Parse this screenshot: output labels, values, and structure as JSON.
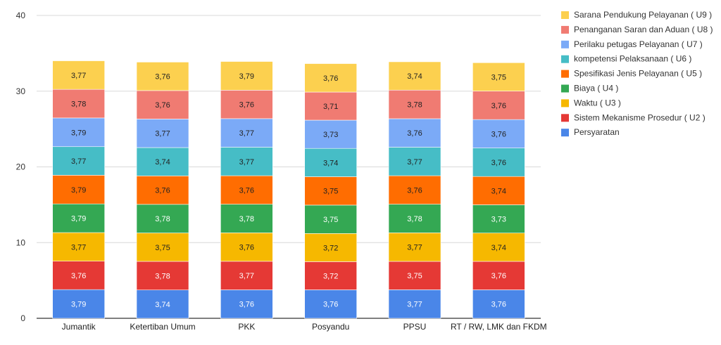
{
  "chart_data": {
    "type": "bar",
    "stacked": true,
    "categories": [
      "Jumantik",
      "Ketertiban Umum",
      "PKK",
      "Posyandu",
      "PPSU",
      "RT / RW, LMK dan FKDM"
    ],
    "ylim": [
      0,
      40
    ],
    "yticks": [
      "0",
      "10",
      "20",
      "30",
      "40"
    ],
    "grid": true,
    "legend_position": "right",
    "series": [
      {
        "name": "Persyaratan",
        "color": "#4a86e8",
        "values": [
          3.79,
          3.74,
          3.76,
          3.76,
          3.77,
          3.76
        ],
        "labels": [
          "3,79",
          "3,74",
          "3,76",
          "3,76",
          "3,77",
          "3,76"
        ],
        "label_color": "#ffffff"
      },
      {
        "name": "Sistem Mekanisme Prosedur ( U2 )",
        "color": "#e53935",
        "values": [
          3.76,
          3.78,
          3.77,
          3.72,
          3.75,
          3.76
        ],
        "labels": [
          "3,76",
          "3,78",
          "3,77",
          "3,72",
          "3,75",
          "3,76"
        ],
        "label_color": "#ffffff"
      },
      {
        "name": "Waktu ( U3 )",
        "color": "#f6b800",
        "values": [
          3.77,
          3.75,
          3.76,
          3.72,
          3.77,
          3.74
        ],
        "labels": [
          "3,77",
          "3,75",
          "3,76",
          "3,72",
          "3,77",
          "3,74"
        ],
        "label_color": "#222222"
      },
      {
        "name": "Biaya ( U4 )",
        "color": "#34a853",
        "values": [
          3.79,
          3.78,
          3.78,
          3.75,
          3.78,
          3.73
        ],
        "labels": [
          "3,79",
          "3,78",
          "3,78",
          "3,75",
          "3,78",
          "3,73"
        ],
        "label_color": "#ffffff"
      },
      {
        "name": "Spesifikasi Jenis Pelayanan ( U5 )",
        "color": "#ff6d01",
        "values": [
          3.79,
          3.76,
          3.76,
          3.75,
          3.76,
          3.74
        ],
        "labels": [
          "3,79",
          "3,76",
          "3,76",
          "3,75",
          "3,76",
          "3,74"
        ],
        "label_color": "#222222"
      },
      {
        "name": "kompetensi Pelaksanaan ( U6 )",
        "color": "#46bdc6",
        "values": [
          3.77,
          3.74,
          3.77,
          3.74,
          3.77,
          3.76
        ],
        "labels": [
          "3,77",
          "3,74",
          "3,77",
          "3,74",
          "3,77",
          "3,76"
        ],
        "label_color": "#222222"
      },
      {
        "name": "Perilaku petugas Pelayanan ( U7 )",
        "color": "#7baaf7",
        "values": [
          3.79,
          3.77,
          3.77,
          3.73,
          3.76,
          3.76
        ],
        "labels": [
          "3,79",
          "3,77",
          "3,77",
          "3,73",
          "3,76",
          "3,76"
        ],
        "label_color": "#222222"
      },
      {
        "name": "Penanganan Saran dan Aduan ( U8 )",
        "color": "#f07b72",
        "values": [
          3.78,
          3.76,
          3.76,
          3.71,
          3.78,
          3.76
        ],
        "labels": [
          "3,78",
          "3,76",
          "3,76",
          "3,71",
          "3,78",
          "3,76"
        ],
        "label_color": "#222222"
      },
      {
        "name": "Sarana Pendukung Pelayanan ( U9 )",
        "color": "#fcd04f",
        "values": [
          3.77,
          3.76,
          3.79,
          3.76,
          3.74,
          3.75
        ],
        "labels": [
          "3,77",
          "3,76",
          "3,79",
          "3,76",
          "3,74",
          "3,75"
        ],
        "label_color": "#222222"
      }
    ]
  }
}
